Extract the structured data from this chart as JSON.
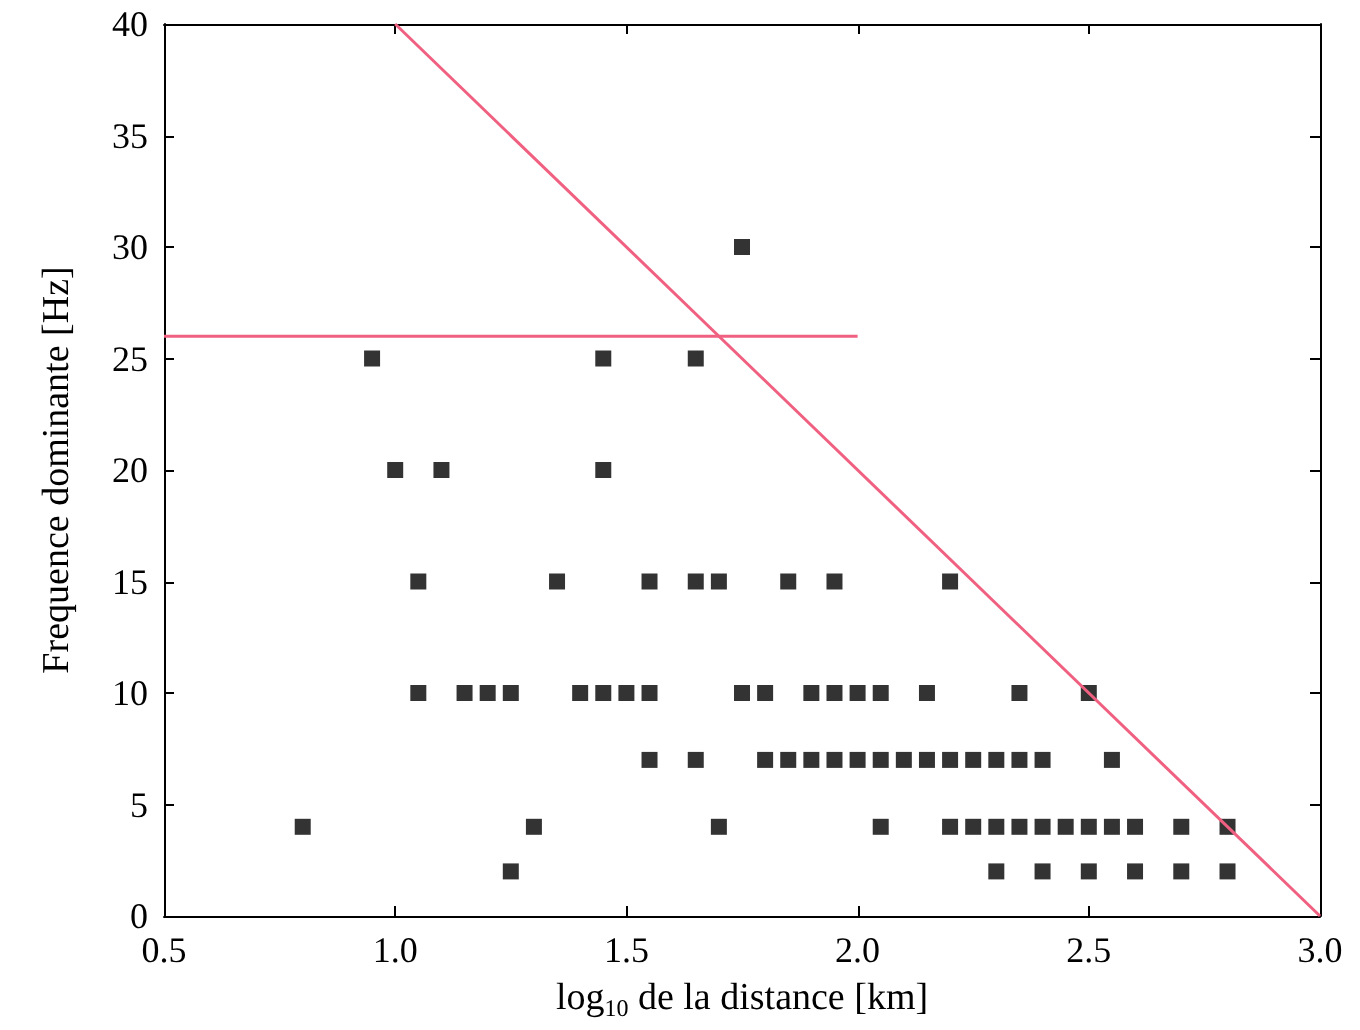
{
  "chart_data": {
    "type": "scatter",
    "xlabel": "log$_{10}$ de la distance [km]",
    "ylabel": "Frequence dominante [Hz]",
    "xlim": [
      0.5,
      3.0
    ],
    "xticks": [
      0.5,
      {
        "value": 1.0,
        "label": "1.0"
      },
      1.5,
      {
        "value": 2.0,
        "label": "2.0"
      },
      2.5,
      {
        "value": 3.0,
        "label": "3.0"
      }
    ],
    "ylim": [
      0,
      40
    ],
    "yticks": [
      0,
      5,
      10,
      15,
      20,
      25,
      30,
      35,
      40
    ],
    "grid": false,
    "series": [
      {
        "marker": "square",
        "color": "#000000",
        "x": [
          1.75,
          0.95,
          1.45,
          1.65,
          1.0,
          1.1,
          1.45,
          1.05,
          1.35,
          1.55,
          1.65,
          1.7,
          1.85,
          1.95,
          2.2,
          1.05,
          1.15,
          1.2,
          1.25,
          1.4,
          1.45,
          1.5,
          1.55,
          1.75,
          1.8,
          1.9,
          1.95,
          2.0,
          2.05,
          2.15,
          2.35,
          2.5,
          1.55,
          1.65,
          1.8,
          1.85,
          1.9,
          1.95,
          2.0,
          2.05,
          2.1,
          2.15,
          2.2,
          2.25,
          2.3,
          2.35,
          2.4,
          2.55,
          0.8,
          1.3,
          1.7,
          2.05,
          2.2,
          2.25,
          2.3,
          2.35,
          2.4,
          2.45,
          2.5,
          2.55,
          2.6,
          2.7,
          2.8,
          1.25,
          2.3,
          2.4,
          2.5,
          2.6,
          2.7,
          2.8
        ],
        "values": [
          30,
          25,
          25,
          25,
          20,
          20,
          20,
          15,
          15,
          15,
          15,
          15,
          15,
          15,
          15,
          10,
          10,
          10,
          10,
          10,
          10,
          10,
          10,
          10,
          10,
          10,
          10,
          10,
          10,
          10,
          10,
          10,
          7,
          7,
          7,
          7,
          7,
          7,
          7,
          7,
          7,
          7,
          7,
          7,
          7,
          7,
          7,
          7,
          4,
          4,
          4,
          4,
          4,
          4,
          4,
          4,
          4,
          4,
          4,
          4,
          4,
          4,
          4,
          2,
          2,
          2,
          2,
          2,
          2,
          2
        ]
      },
      {
        "type": "line",
        "marker": "none",
        "line_style": "solid",
        "color": "#f06080",
        "x": [
          1.0,
          3.0
        ],
        "values": [
          40,
          0
        ]
      },
      {
        "type": "line",
        "marker": "none",
        "line_style": "solid",
        "color": "#f06080",
        "x": [
          0.5,
          2.0
        ],
        "values": [
          26,
          26
        ]
      }
    ]
  }
}
